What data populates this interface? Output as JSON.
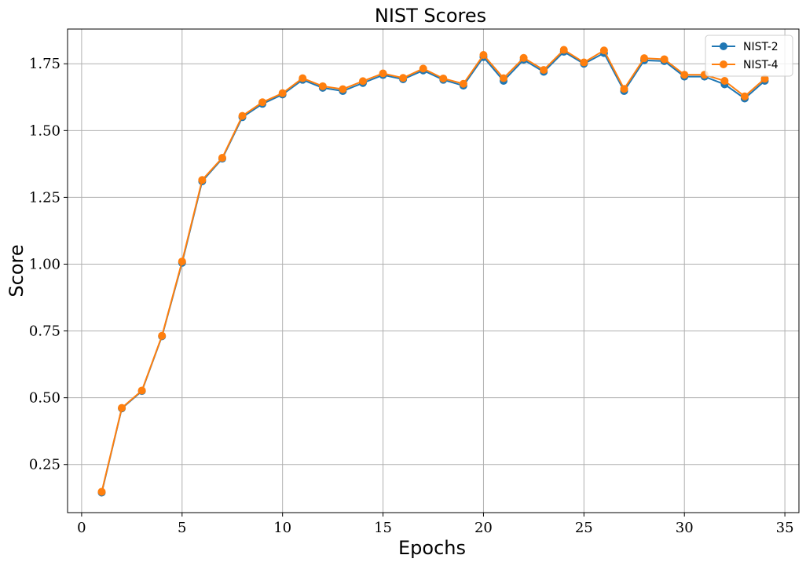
{
  "chart_data": {
    "type": "line",
    "title": "NIST Scores",
    "xlabel": "Epochs",
    "ylabel": "Score",
    "xlim": [
      -0.7,
      35.7
    ],
    "ylim": [
      0.07,
      1.88
    ],
    "xticks": [
      0,
      5,
      10,
      15,
      20,
      25,
      30,
      35
    ],
    "xtick_labels": [
      "0",
      "5",
      "10",
      "15",
      "20",
      "25",
      "30",
      "35"
    ],
    "yticks": [
      0.25,
      0.5,
      0.75,
      1.0,
      1.25,
      1.5,
      1.75
    ],
    "ytick_labels": [
      "0.25",
      "0.50",
      "0.75",
      "1.00",
      "1.25",
      "1.50",
      "1.75"
    ],
    "grid": true,
    "legend_position": "top-right",
    "x": [
      1,
      2,
      3,
      4,
      5,
      6,
      7,
      8,
      9,
      10,
      11,
      12,
      13,
      14,
      15,
      16,
      17,
      18,
      19,
      20,
      21,
      22,
      23,
      24,
      25,
      26,
      27,
      28,
      29,
      30,
      31,
      32,
      33,
      34
    ],
    "series": [
      {
        "name": "NIST-2",
        "color": "#1f77b4",
        "values": [
          0.145,
          0.46,
          0.525,
          0.73,
          1.005,
          1.31,
          1.395,
          1.55,
          1.6,
          1.635,
          1.69,
          1.66,
          1.648,
          1.678,
          1.708,
          1.692,
          1.725,
          1.69,
          1.668,
          1.775,
          1.686,
          1.765,
          1.72,
          1.795,
          1.75,
          1.79,
          1.648,
          1.763,
          1.76,
          1.702,
          1.702,
          1.673,
          1.62,
          1.686
        ]
      },
      {
        "name": "NIST-4",
        "color": "#ff7f0e",
        "values": [
          0.148,
          0.462,
          0.527,
          0.732,
          1.01,
          1.315,
          1.398,
          1.555,
          1.606,
          1.64,
          1.696,
          1.666,
          1.655,
          1.685,
          1.714,
          1.697,
          1.732,
          1.695,
          1.675,
          1.783,
          1.696,
          1.772,
          1.727,
          1.802,
          1.755,
          1.8,
          1.656,
          1.771,
          1.767,
          1.709,
          1.709,
          1.686,
          1.628,
          1.694
        ]
      }
    ]
  }
}
